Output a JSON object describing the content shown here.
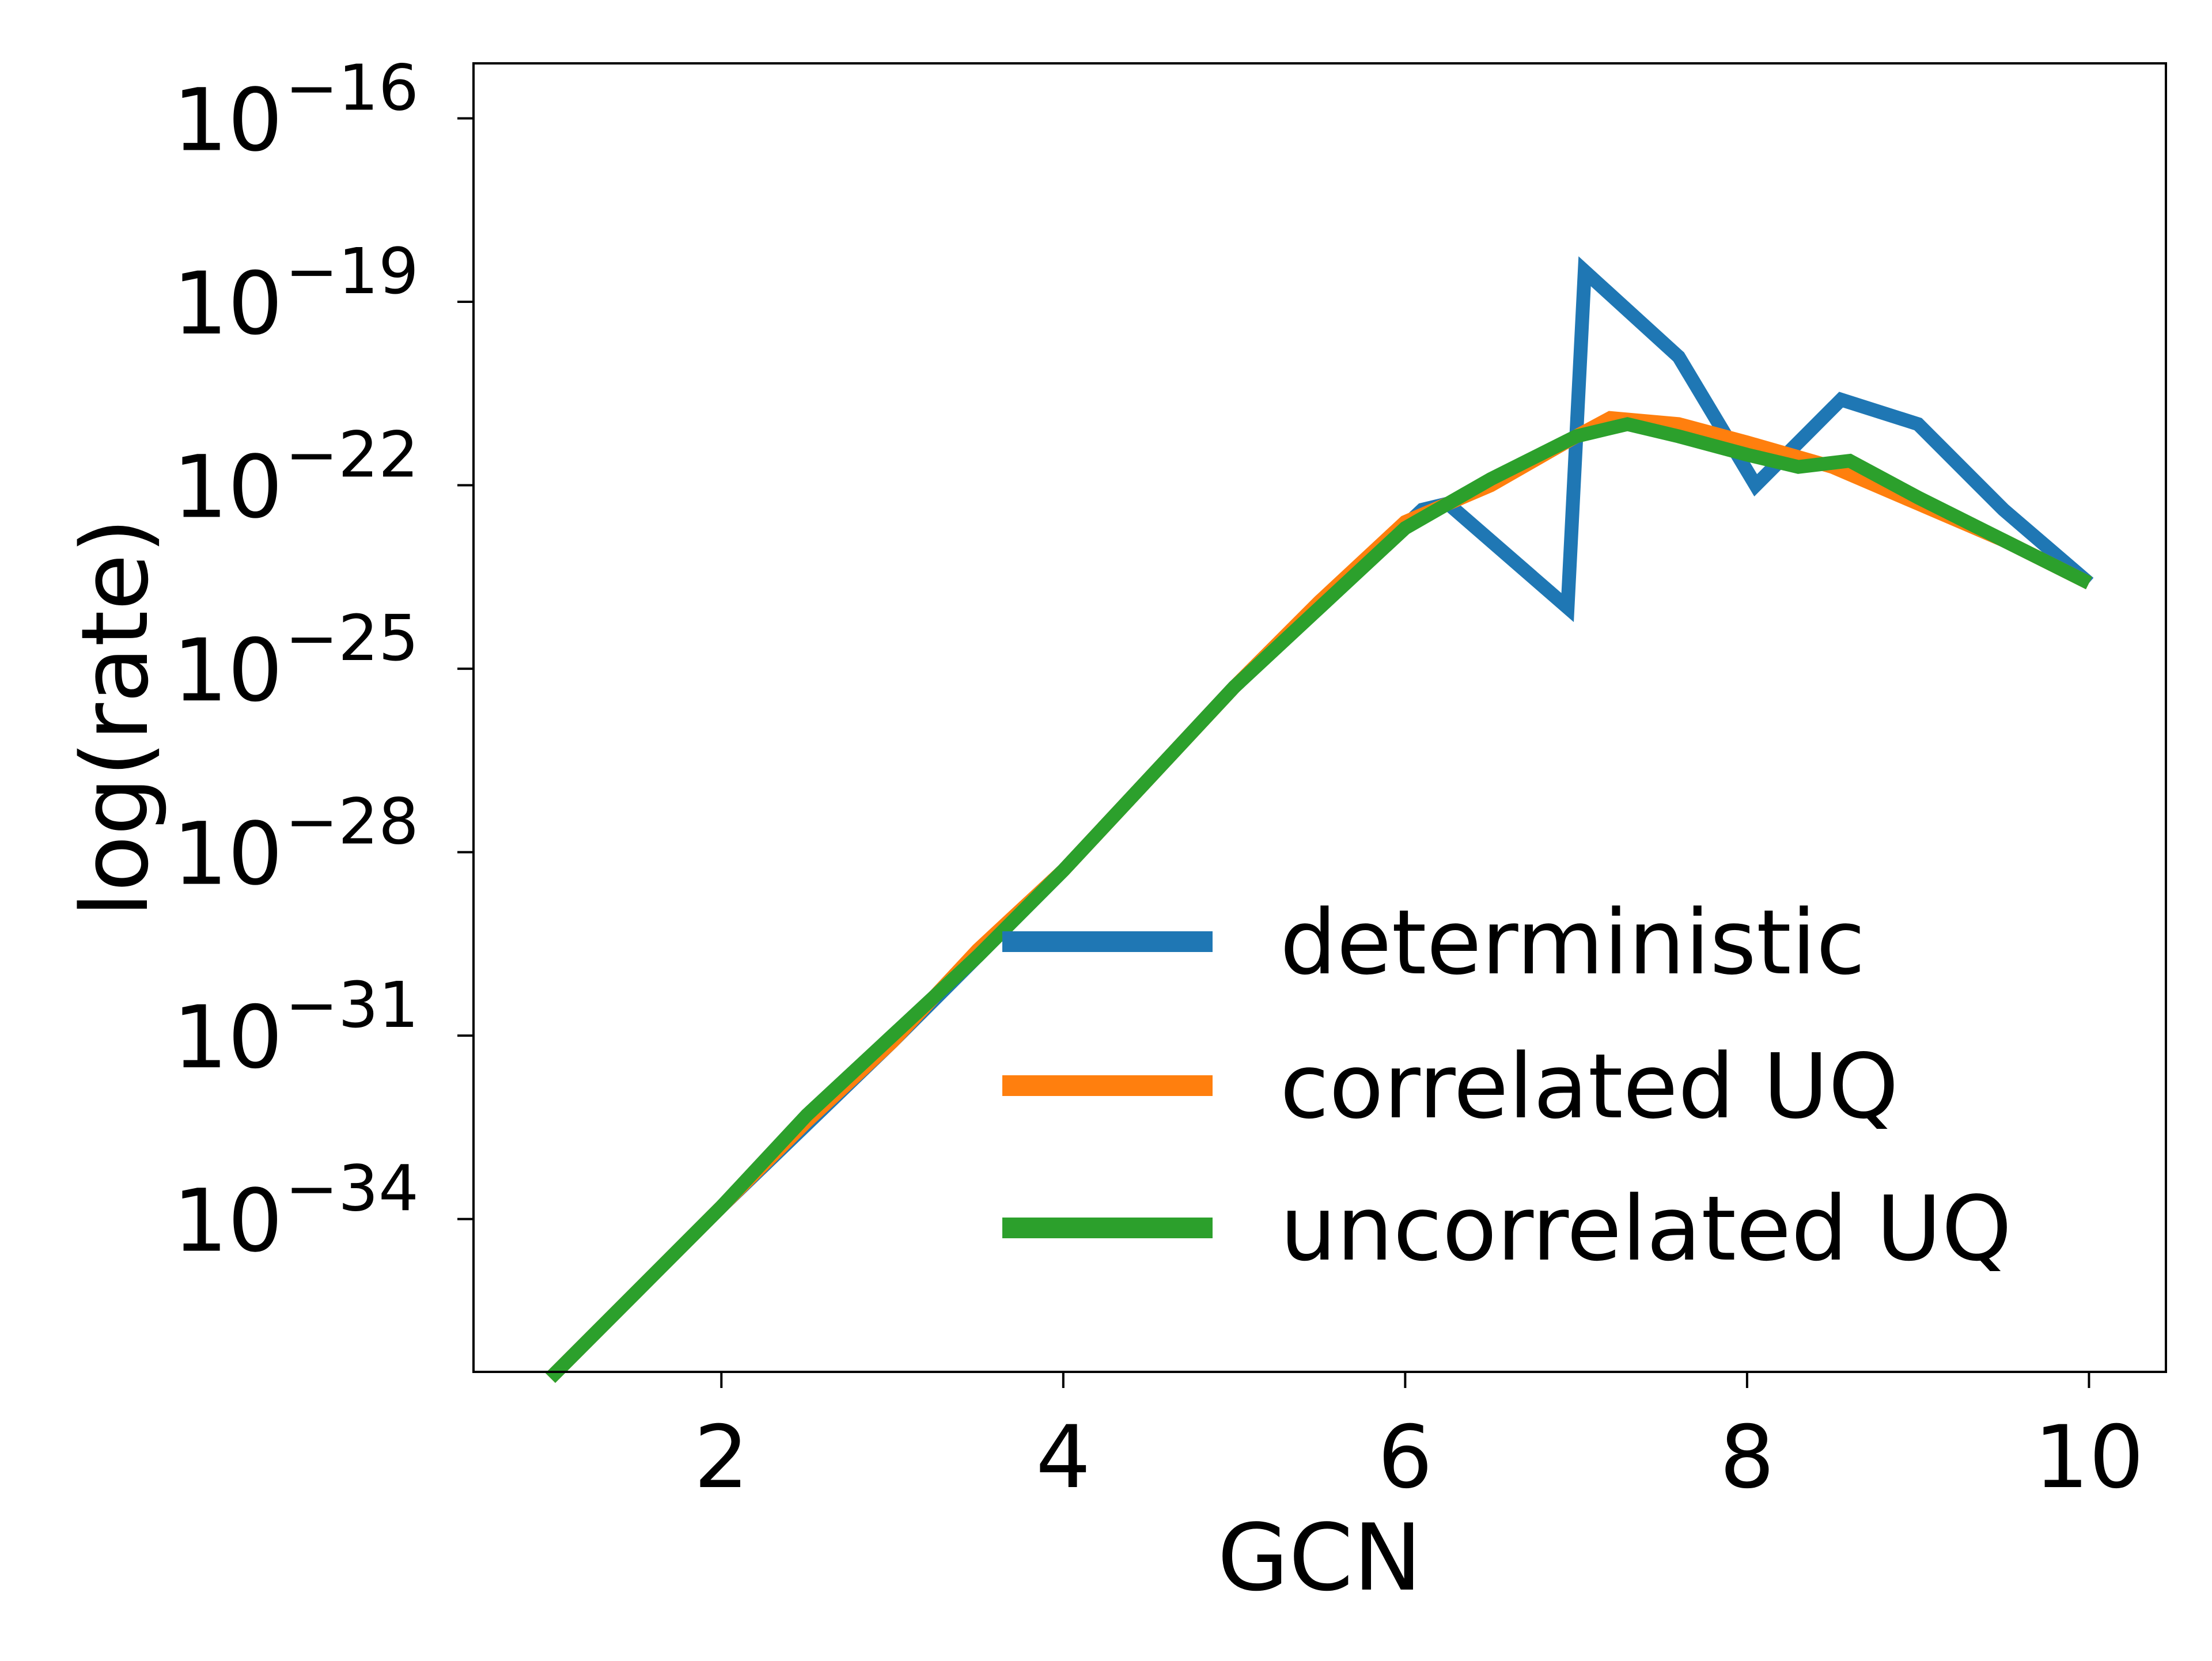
{
  "chart_data": {
    "type": "line",
    "title": "",
    "xlabel": "GCN",
    "ylabel": "log(rate)",
    "xlim": [
      0.55,
      10.45
    ],
    "ylim_exp": [
      -36.5,
      -15.1
    ],
    "y_scale": "log",
    "grid": false,
    "legend_position": "lower-right",
    "x_ticks": [
      {
        "value": 2,
        "label": "2"
      },
      {
        "value": 4,
        "label": "4"
      },
      {
        "value": 6,
        "label": "6"
      },
      {
        "value": 8,
        "label": "8"
      },
      {
        "value": 10,
        "label": "10"
      }
    ],
    "y_ticks": [
      {
        "exp": -16,
        "base": "10",
        "sup": "−16"
      },
      {
        "exp": -19,
        "base": "10",
        "sup": "−19"
      },
      {
        "exp": -22,
        "base": "10",
        "sup": "−22"
      },
      {
        "exp": -25,
        "base": "10",
        "sup": "−25"
      },
      {
        "exp": -28,
        "base": "10",
        "sup": "−28"
      },
      {
        "exp": -31,
        "base": "10",
        "sup": "−31"
      },
      {
        "exp": -34,
        "base": "10",
        "sup": "−34"
      }
    ],
    "series": [
      {
        "name": "deterministic",
        "color": "#1f77b4",
        "x": [
          1.0,
          2.0,
          3.0,
          4.0,
          5.0,
          6.1,
          6.25,
          6.95,
          7.05,
          7.6,
          8.05,
          8.55,
          9.0,
          9.5,
          10.0
        ],
        "y_exp": [
          -36.6,
          -33.8,
          -31.1,
          -28.3,
          -25.3,
          -22.4,
          -22.3,
          -24.0,
          -18.5,
          -19.9,
          -22.0,
          -20.6,
          -21.0,
          -22.4,
          -23.6
        ]
      },
      {
        "name": "correlated UQ",
        "color": "#ff7f0e",
        "x": [
          1.0,
          1.5,
          2.0,
          2.5,
          3.0,
          3.5,
          4.0,
          4.5,
          5.0,
          5.5,
          6.0,
          6.5,
          7.0,
          7.2,
          7.6,
          8.0,
          8.5,
          9.0,
          9.5,
          10.0
        ],
        "y_exp": [
          -36.6,
          -35.2,
          -33.8,
          -32.4,
          -31.1,
          -29.6,
          -28.3,
          -26.8,
          -25.3,
          -23.9,
          -22.6,
          -22.0,
          -21.2,
          -20.9,
          -21.0,
          -21.3,
          -21.7,
          -22.3,
          -22.9,
          -23.6
        ]
      },
      {
        "name": "uncorrelated UQ",
        "color": "#2ca02c",
        "x": [
          1.0,
          1.5,
          2.0,
          2.5,
          3.0,
          3.5,
          4.0,
          4.5,
          5.0,
          5.5,
          6.0,
          6.5,
          7.0,
          7.3,
          7.6,
          8.0,
          8.3,
          8.6,
          9.0,
          9.5,
          10.0
        ],
        "y_exp": [
          -36.6,
          -35.2,
          -33.8,
          -32.3,
          -31.0,
          -29.7,
          -28.3,
          -26.8,
          -25.3,
          -24.0,
          -22.7,
          -21.9,
          -21.2,
          -21.0,
          -21.2,
          -21.5,
          -21.7,
          -21.6,
          -22.2,
          -22.9,
          -23.6
        ]
      }
    ]
  }
}
